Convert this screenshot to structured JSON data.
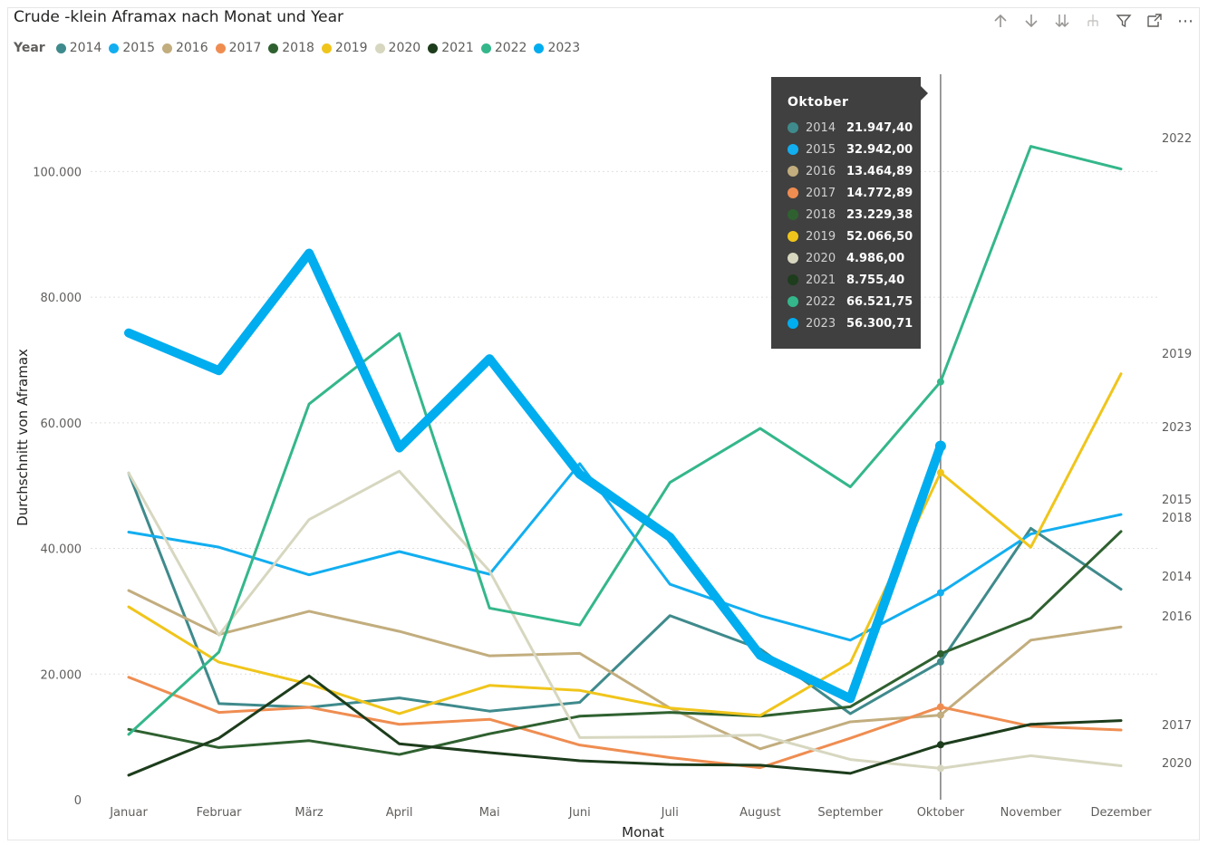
{
  "header": {
    "title": "Crude -klein Aframax nach Monat und Year"
  },
  "toolbar": {
    "icons": [
      "arrow-up-icon",
      "arrow-down-icon",
      "double-arrow-down-icon",
      "expand-hierarchy-icon",
      "filter-icon",
      "focus-mode-icon",
      "more-options-icon"
    ],
    "more_label": "⋯"
  },
  "legend": {
    "title": "Year"
  },
  "tooltip": {
    "title": "Oktober",
    "rows": [
      {
        "year": "2014",
        "value": "21.947,40"
      },
      {
        "year": "2015",
        "value": "32.942,00"
      },
      {
        "year": "2016",
        "value": "13.464,89"
      },
      {
        "year": "2017",
        "value": "14.772,89"
      },
      {
        "year": "2018",
        "value": "23.229,38"
      },
      {
        "year": "2019",
        "value": "52.066,50"
      },
      {
        "year": "2020",
        "value": "4.986,00"
      },
      {
        "year": "2021",
        "value": "8.755,40"
      },
      {
        "year": "2022",
        "value": "66.521,75"
      },
      {
        "year": "2023",
        "value": "56.300,71"
      }
    ]
  },
  "chart_data": {
    "type": "line",
    "title": "Crude -klein Aframax nach Monat und Year",
    "xlabel": "Monat",
    "ylabel": "Durchschnitt von Aframax",
    "ylim": [
      0,
      110000
    ],
    "yticks": [
      0,
      20000,
      40000,
      60000,
      80000,
      100000
    ],
    "ytick_labels": [
      "0",
      "20.000",
      "40.000",
      "60.000",
      "80.000",
      "100.000"
    ],
    "grid": true,
    "legend_position": "top-left",
    "highlighted_category": "Oktober",
    "categories": [
      "Januar",
      "Februar",
      "März",
      "April",
      "Mai",
      "Juni",
      "Juli",
      "August",
      "September",
      "Oktober",
      "November",
      "Dezember"
    ],
    "series": [
      {
        "name": "2014",
        "color": "#3f8a8c",
        "width": 3,
        "values": [
          52000,
          15300,
          14700,
          16200,
          14100,
          15500,
          29300,
          24000,
          13700,
          21947.4,
          43200,
          33500
        ]
      },
      {
        "name": "2015",
        "color": "#12aef0",
        "width": 3,
        "values": [
          42600,
          40200,
          35800,
          39500,
          35900,
          53500,
          34300,
          29300,
          25400,
          32942.0,
          42300,
          45400
        ]
      },
      {
        "name": "2016",
        "color": "#c2ad7e",
        "width": 3,
        "values": [
          33300,
          26300,
          30000,
          26800,
          22900,
          23300,
          14600,
          8100,
          12400,
          13464.89,
          25400,
          27500
        ]
      },
      {
        "name": "2017",
        "color": "#ef8d51",
        "width": 3,
        "values": [
          19500,
          13900,
          14700,
          12000,
          12800,
          8700,
          6700,
          5100,
          9800,
          14772.89,
          11700,
          11100
        ]
      },
      {
        "name": "2018",
        "color": "#2f6130",
        "width": 3,
        "values": [
          11200,
          8300,
          9400,
          7200,
          10500,
          13300,
          13900,
          13300,
          14800,
          23229.38,
          28900,
          42700
        ]
      },
      {
        "name": "2019",
        "color": "#f0c51b",
        "width": 3,
        "values": [
          30700,
          21900,
          18400,
          13700,
          18200,
          17400,
          14600,
          13400,
          21800,
          52066.5,
          40200,
          67800
        ]
      },
      {
        "name": "2020",
        "color": "#d7d7c0",
        "width": 3,
        "values": [
          52000,
          26200,
          44600,
          52300,
          36400,
          9900,
          10000,
          10300,
          6400,
          4986.0,
          7000,
          5400
        ]
      },
      {
        "name": "2021",
        "color": "#1d3d1c",
        "width": 3,
        "values": [
          3900,
          9800,
          19700,
          8900,
          7500,
          6200,
          5600,
          5500,
          4200,
          8755.4,
          12000,
          12600
        ]
      },
      {
        "name": "2022",
        "color": "#34b78a",
        "width": 3,
        "values": [
          10400,
          23500,
          63000,
          74200,
          30500,
          27800,
          50500,
          59100,
          49800,
          66521.75,
          104000,
          100400
        ]
      },
      {
        "name": "2023",
        "color": "#00adef",
        "width": 10,
        "values": [
          74300,
          68300,
          87000,
          56000,
          70200,
          51800,
          41800,
          23000,
          16100,
          56300.71,
          null,
          null
        ]
      }
    ],
    "end_labels": [
      "2022",
      "2019",
      "2023",
      "2015",
      "2018",
      "2014",
      "2016",
      "2017",
      "2020"
    ]
  }
}
